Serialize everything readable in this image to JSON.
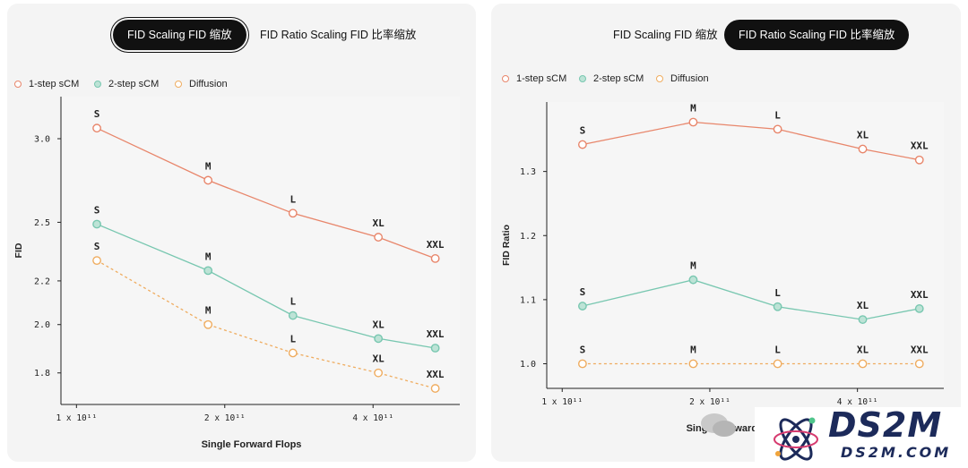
{
  "colors": {
    "one_step": "#e8866b",
    "two_step": "#78c7b0",
    "diffusion": "#efac5f",
    "two_step_fill": "#bde3d6",
    "axis": "#222222",
    "grid": "#d8d8d8"
  },
  "left": {
    "tabs": [
      {
        "label": "FID Scaling FID 缩放",
        "active": true
      },
      {
        "label": "FID Ratio Scaling FID 比率缩放",
        "active": false
      }
    ],
    "legend": [
      "1-step sCM",
      "2-step sCM",
      "Diffusion"
    ]
  },
  "right": {
    "tabs": [
      {
        "label": "FID Scaling FID 缩放",
        "active": false
      },
      {
        "label": "FID Ratio Scaling FID 比率缩放",
        "active": true
      }
    ],
    "legend": [
      "1-step sCM",
      "2-step sCM",
      "Diffusion"
    ]
  },
  "chart_data": [
    {
      "type": "line",
      "title": "",
      "xlabel": "Single Forward Flops",
      "ylabel": "FID",
      "x_scale": "log",
      "y_scale": "log",
      "grid": false,
      "legend_position": "top-left",
      "x_ticks": [
        {
          "value": 100000000000.0,
          "label": "1 x 10¹¹"
        },
        {
          "value": 200000000000.0,
          "label": "2 x 10¹¹"
        },
        {
          "value": 400000000000.0,
          "label": "4 x 10¹¹"
        }
      ],
      "y_ticks": [
        1.8,
        2.0,
        2.2,
        2.5,
        3.0
      ],
      "y_tick_labels": [
        "1.8",
        "2.0",
        "2.2",
        "2.5",
        "3.0"
      ],
      "xlim": [
        93000000000.0,
        600000000000.0
      ],
      "ylim": [
        1.7,
        3.25
      ],
      "x": [
        110000000000.0,
        185000000000.0,
        275000000000.0,
        410000000000.0,
        535000000000.0
      ],
      "point_labels": [
        "S",
        "M",
        "L",
        "XL",
        "XXL"
      ],
      "series": [
        {
          "name": "1-step sCM",
          "values": [
            3.07,
            2.74,
            2.55,
            2.42,
            2.31
          ],
          "style": "solid"
        },
        {
          "name": "2-step sCM",
          "values": [
            2.49,
            2.25,
            2.04,
            1.94,
            1.9
          ],
          "style": "solid"
        },
        {
          "name": "Diffusion",
          "values": [
            2.3,
            2.0,
            1.88,
            1.8,
            1.74
          ],
          "style": "dashed"
        }
      ]
    },
    {
      "type": "line",
      "title": "",
      "xlabel": "Single Forward Flops",
      "ylabel": "FID Ratio",
      "x_scale": "log",
      "y_scale": "linear",
      "grid": false,
      "legend_position": "top-left",
      "x_ticks": [
        {
          "value": 100000000000.0,
          "label": "1 x 10¹¹"
        },
        {
          "value": 200000000000.0,
          "label": "2 x 10¹¹"
        },
        {
          "value": 400000000000.0,
          "label": "4 x 10¹¹"
        }
      ],
      "y_ticks": [
        1.0,
        1.1,
        1.2,
        1.3
      ],
      "y_tick_labels": [
        "1.0",
        "1.1",
        "1.2",
        "1.3"
      ],
      "xlim": [
        93000000000.0,
        600000000000.0
      ],
      "ylim": [
        0.97,
        1.4
      ],
      "x": [
        110000000000.0,
        185000000000.0,
        275000000000.0,
        410000000000.0,
        535000000000.0
      ],
      "point_labels": [
        "S",
        "M",
        "L",
        "XL",
        "XXL"
      ],
      "series": [
        {
          "name": "1-step sCM",
          "values": [
            1.342,
            1.377,
            1.366,
            1.335,
            1.318
          ],
          "style": "solid"
        },
        {
          "name": "2-step sCM",
          "values": [
            1.09,
            1.131,
            1.089,
            1.069,
            1.086
          ],
          "style": "solid"
        },
        {
          "name": "Diffusion",
          "values": [
            1.0,
            1.0,
            1.0,
            1.0,
            1.0
          ],
          "style": "dashed"
        }
      ]
    }
  ],
  "watermark": {
    "title": "DS2M",
    "subtitle": "DS2M.COM"
  }
}
